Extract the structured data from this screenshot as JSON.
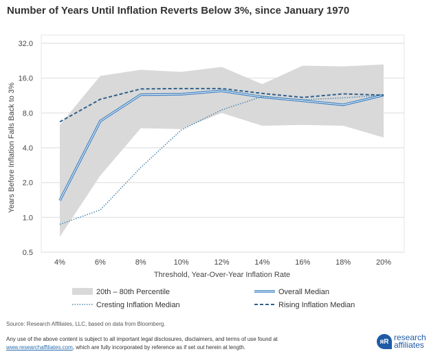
{
  "chart_data": {
    "type": "line",
    "title": "Number of Years Until Inflation Reverts Below 3%, since January 1970",
    "xlabel": "Threshold,  Year-Over-Year  Inflation  Rate",
    "ylabel": "Years Before Inflation Falls Back to 3%",
    "yscale": "log2",
    "ylim": [
      0.5,
      32
    ],
    "yticks": [
      "32.0",
      "16.0",
      "8.0",
      "4.0",
      "2.0",
      "1.0",
      "0.5"
    ],
    "ytick_values": [
      32,
      16,
      8,
      4,
      2,
      1,
      0.5
    ],
    "categories": [
      "4%",
      "6%",
      "8%",
      "10%",
      "12%",
      "14%",
      "16%",
      "18%",
      "20%"
    ],
    "band": {
      "name": "20th – 80th Percentile",
      "color": "#d9d9d9",
      "upper": [
        6.3,
        16.7,
        18.9,
        18.1,
        20.0,
        14.2,
        20.5,
        20.2,
        21.0
      ],
      "lower": [
        0.68,
        2.3,
        5.9,
        5.8,
        8.0,
        6.2,
        6.3,
        6.2,
        4.9
      ]
    },
    "series": [
      {
        "name": "Overall Median",
        "style": "double",
        "color": "#3a7fc1",
        "values": [
          1.4,
          6.8,
          11.5,
          11.6,
          12.4,
          11.0,
          10.2,
          9.4,
          11.4
        ]
      },
      {
        "name": "Cresting Inflation Median",
        "style": "dotted",
        "color": "#4a86b0",
        "values": [
          0.87,
          1.16,
          2.7,
          5.7,
          8.5,
          11.1,
          10.4,
          10.8,
          11.4
        ]
      },
      {
        "name": "Rising Inflation Median",
        "style": "dashed",
        "color": "#2e5f8a",
        "values": [
          6.7,
          10.5,
          12.9,
          13.0,
          13.0,
          11.8,
          10.9,
          11.7,
          11.4
        ]
      }
    ],
    "legend": "bottom",
    "grid": true
  },
  "footer": {
    "source": "Source: Research Affiliates, LLC, based on data from Bloomberg.",
    "disclaimer_1": "Any use of the above content is subject to all important legal disclosures, disclaimers, and terms of use found at",
    "link": "www.researchaffiliates.com",
    "disclaimer_2": ", which are fully incorporated by reference as if set out herein at length.",
    "logo_text_1": "research",
    "logo_text_2": "affiliates"
  }
}
